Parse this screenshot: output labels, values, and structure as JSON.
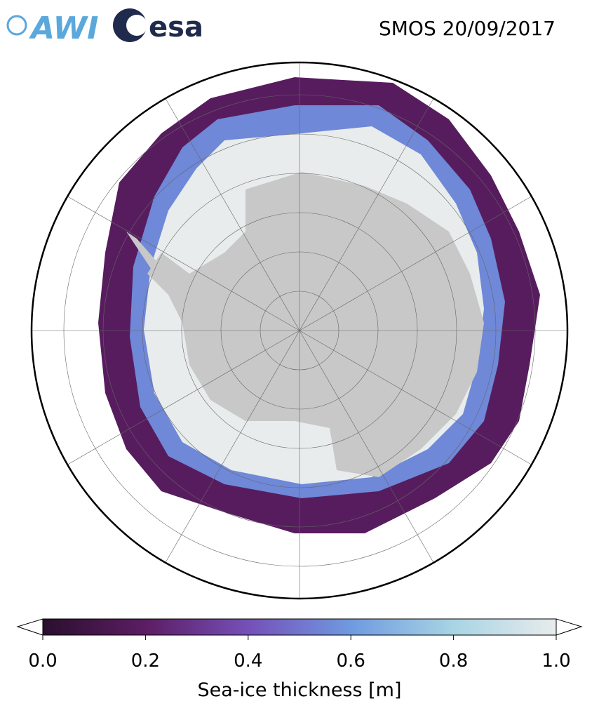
{
  "header": {
    "title": "SMOS 20/09/2017",
    "logos": {
      "awi": "AWI",
      "esa": "esa"
    }
  },
  "colorbar": {
    "label": "Sea-ice thickness [m]",
    "lim": [
      0,
      1
    ],
    "ticks": [
      {
        "value": 0,
        "label": "0.0"
      },
      0.2,
      0.4,
      0.6,
      0.8,
      {
        "value": 1,
        "label": "1.0"
      }
    ],
    "colors": [
      "#2a0f2e",
      "#5c1d63",
      "#7550b8",
      "#6f9ae0",
      "#a8d4e4",
      "#e8ecec"
    ]
  }
}
